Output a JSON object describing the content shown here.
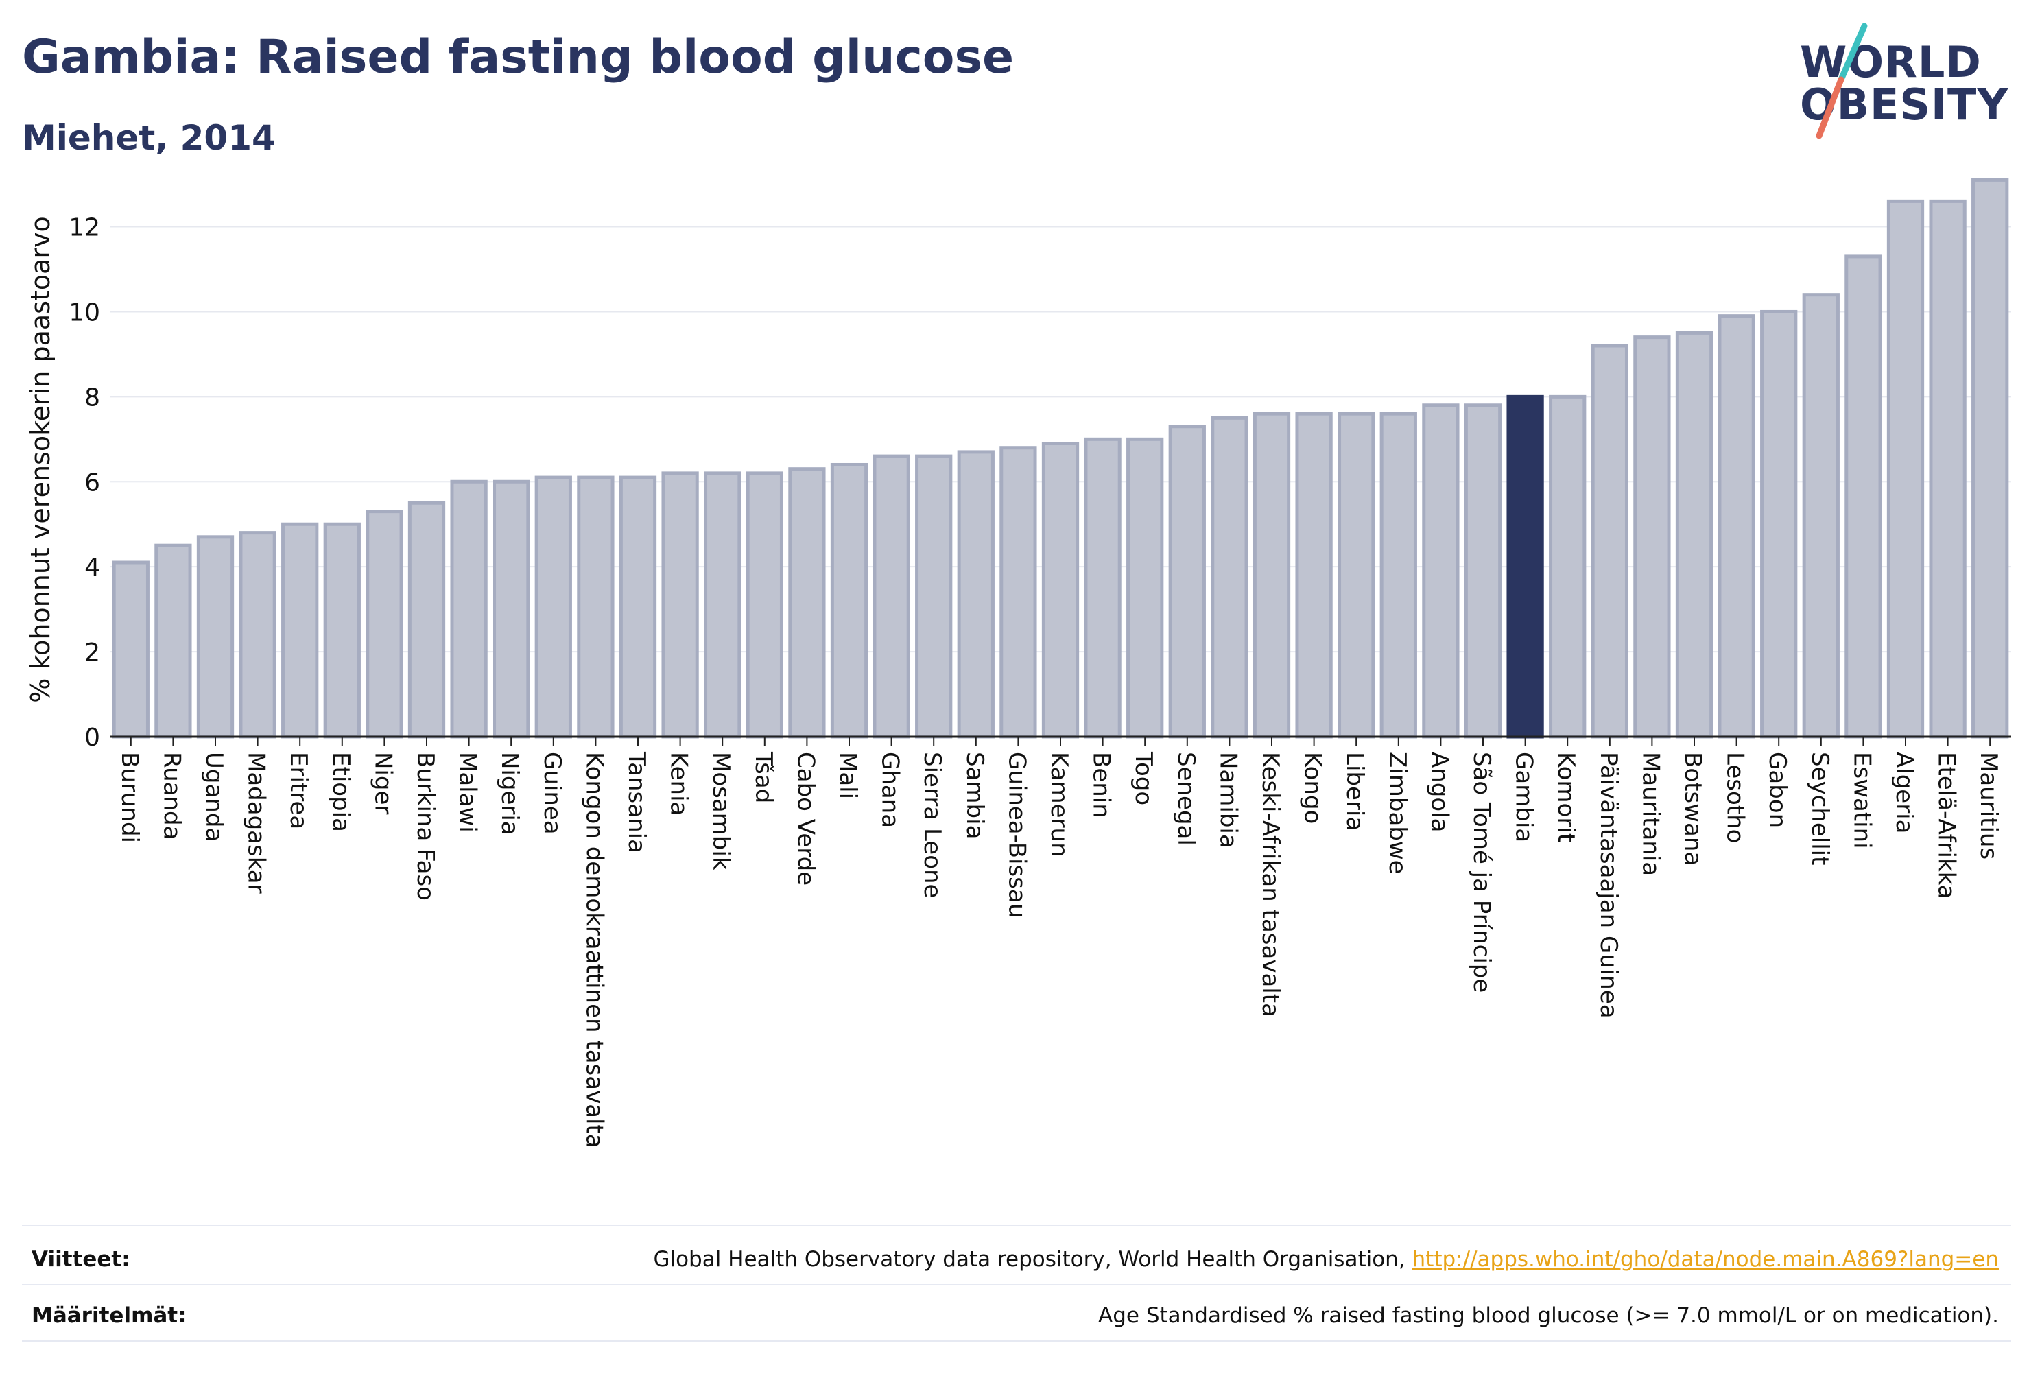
{
  "header": {
    "title": "Gambia: Raised fasting blood glucose",
    "subtitle": "Miehet, 2014"
  },
  "logo": {
    "line1": "WORLD",
    "line2": "OBESITY",
    "colors": {
      "text": "#2a3560",
      "slash_top": "#3cc0c0",
      "slash_bottom": "#e8705a"
    }
  },
  "chart_data": {
    "type": "bar",
    "ylabel": "% kohonnut verensokerin paastoarvo",
    "xlabel": "",
    "ylim": [
      0,
      13.3
    ],
    "yticks": [
      0,
      2,
      4,
      6,
      8,
      10,
      12
    ],
    "grid": true,
    "highlight": "Gambia",
    "colors": {
      "bar": "#bfc3d0",
      "bar_edge": "#a6acc0",
      "highlight": "#2a3560"
    },
    "categories": [
      "Burundi",
      "Ruanda",
      "Uganda",
      "Madagaskar",
      "Eritrea",
      "Etiopia",
      "Niger",
      "Burkina Faso",
      "Malawi",
      "Nigeria",
      "Guinea",
      "Kongon demokraattinen tasavalta",
      "Tansania",
      "Kenia",
      "Mosambik",
      "Tšad",
      "Cabo Verde",
      "Mali",
      "Ghana",
      "Sierra Leone",
      "Sambia",
      "Guinea-Bissau",
      "Kamerun",
      "Benin",
      "Togo",
      "Senegal",
      "Namibia",
      "Keski-Afrikan tasavalta",
      "Kongo",
      "Liberia",
      "Zimbabwe",
      "Angola",
      "São Tomé ja Príncipe",
      "Gambia",
      "Komorit",
      "Päiväntasaajan Guinea",
      "Mauritania",
      "Botswana",
      "Lesotho",
      "Gabon",
      "Seychellit",
      "Eswatini",
      "Algeria",
      "Etelä-Afrikka",
      "Mauritius"
    ],
    "values": [
      4.1,
      4.5,
      4.7,
      4.8,
      5.0,
      5.0,
      5.3,
      5.5,
      6.0,
      6.0,
      6.1,
      6.1,
      6.1,
      6.2,
      6.2,
      6.2,
      6.3,
      6.4,
      6.6,
      6.6,
      6.7,
      6.8,
      6.9,
      7.0,
      7.0,
      7.3,
      7.5,
      7.6,
      7.6,
      7.6,
      7.6,
      7.8,
      7.8,
      8.0,
      8.0,
      9.2,
      9.4,
      9.5,
      9.9,
      10.0,
      10.4,
      11.3,
      12.6,
      12.6,
      13.1
    ]
  },
  "footer": {
    "sources_label": "Viitteet:",
    "sources_text": "Global Health Observatory data repository, World Health Organisation, ",
    "sources_link": "http://apps.who.int/gho/data/node.main.A869?lang=en",
    "definitions_label": "Määritelmät:",
    "definitions_text": "Age Standardised % raised fasting blood glucose (>= 7.0 mmol/L or on medication)."
  }
}
